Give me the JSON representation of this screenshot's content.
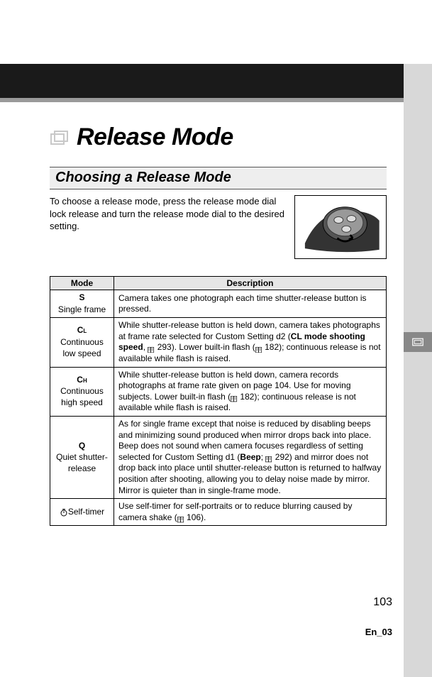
{
  "title": "Release Mode",
  "subheading": "Choosing a Release Mode",
  "intro": "To choose a release mode, press the release mode dial lock release and turn the release mode dial to the desired setting.",
  "table": {
    "headers": [
      "Mode",
      "Description"
    ],
    "rows": [
      {
        "symbol": "S",
        "label": "Single frame",
        "desc_parts": [
          "Camera takes one photograph each time shutter-release button is pressed."
        ]
      },
      {
        "symbol": "CL",
        "symbol_sub": "L",
        "label": "Continuous low speed",
        "desc_parts": [
          "While shutter-release button is held down, camera takes photographs at frame rate selected for Custom Setting d2 (",
          {
            "b": "CL mode shooting speed"
          },
          ", ",
          {
            "ref": "293"
          },
          "). Lower built-in flash (",
          {
            "ref": "182"
          },
          "); continuous release is not available while flash is raised."
        ]
      },
      {
        "symbol": "CH",
        "symbol_sub": "H",
        "label": "Continuous high speed",
        "desc_parts": [
          "While shutter-release button is held down, camera records photographs at frame rate given on page 104. Use for moving subjects. Lower built-in flash (",
          {
            "ref": "182"
          },
          "); continuous release is not available while flash is raised."
        ]
      },
      {
        "symbol": "Q",
        "label": "Quiet shutter-release",
        "desc_parts": [
          "As for single frame except that noise is reduced by disabling beeps and minimizing sound produced when mirror drops back into place. Beep does not sound when camera focuses regardless of setting selected for Custom Setting d1 (",
          {
            "b": "Beep"
          },
          "; ",
          {
            "ref": "292"
          },
          ") and mirror does not drop back into place until shutter-release button is returned to halfway position after shooting, allowing you to delay noise made by mirror. Mirror is quieter than in single-frame mode."
        ]
      },
      {
        "symbol_svg": "timer",
        "label": "Self-timer",
        "desc_parts": [
          "Use self-timer for self-portraits or to reduce blurring caused by camera shake (",
          {
            "ref": "106"
          },
          ")."
        ]
      }
    ]
  },
  "page_number": "103",
  "footer_code": "En_03",
  "colors": {
    "page_bg": "#ffffff",
    "margin_gray": "#d8d8d8",
    "bar_black": "#1a1a1a",
    "strip_gray": "#9a9a9a",
    "subhead_bg": "#eeeeee",
    "table_header_bg": "#e6e6e6",
    "tab_gray": "#888888"
  }
}
